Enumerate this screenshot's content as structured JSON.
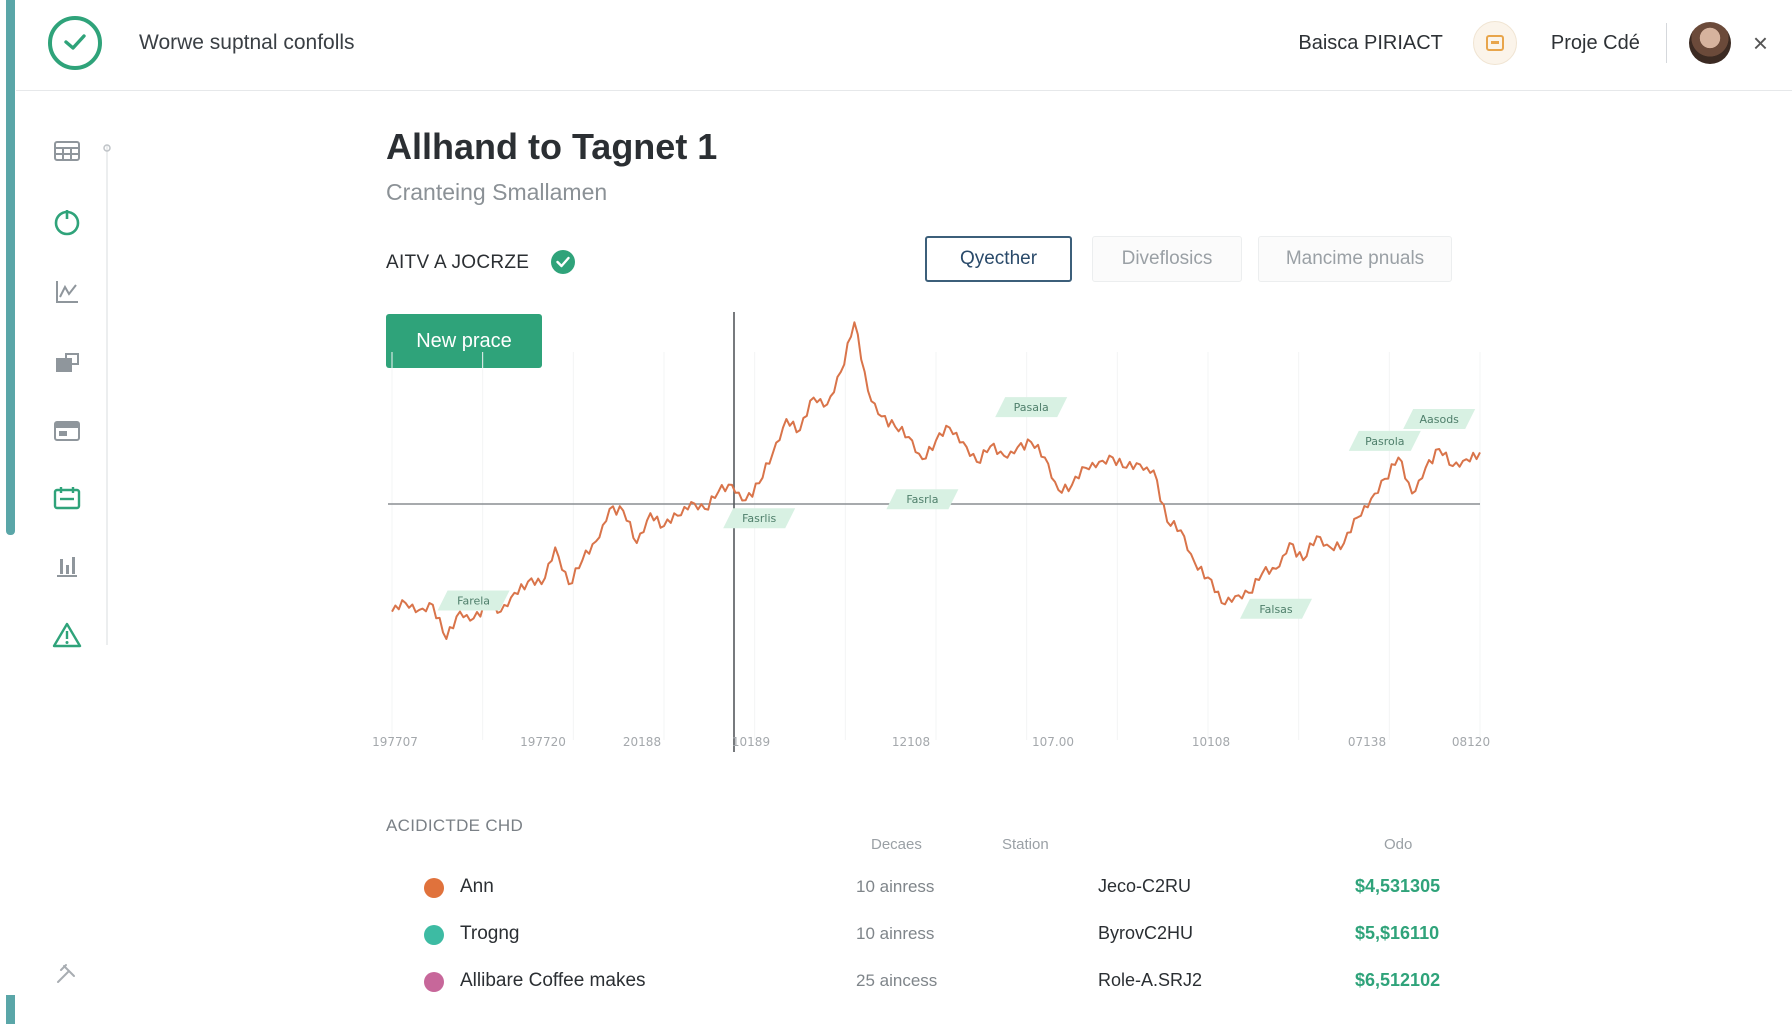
{
  "header": {
    "app_title": "Worwe suptnal confolls",
    "user_label": "Baisca PIRIACT",
    "project_label": "Proje Cdé",
    "close_label": "×"
  },
  "sidebar": {
    "items": [
      {
        "icon": "grid-icon"
      },
      {
        "icon": "power-icon"
      },
      {
        "icon": "chart-icon"
      },
      {
        "icon": "folder-icon"
      },
      {
        "icon": "inbox-icon"
      },
      {
        "icon": "calendar-icon"
      },
      {
        "icon": "bar-chart-icon"
      },
      {
        "icon": "warning-icon"
      }
    ],
    "bottom_icon": "tools-icon"
  },
  "main": {
    "title": "Allhand to Tagnet 1",
    "subtitle": "Cranteing Smallamen",
    "status_label": "AITV A JOCRZE",
    "tabs": [
      {
        "label": "Qyecther",
        "active": true
      },
      {
        "label": "Diveflosics",
        "active": false
      },
      {
        "label": "Mancime pnuals",
        "active": false
      }
    ],
    "new_button": "New prace"
  },
  "chart_data": {
    "type": "line",
    "x_tick_labels": [
      "197707",
      "197720",
      "20188",
      "10189",
      "12108",
      "107.00",
      "10108",
      "07138",
      "08120"
    ],
    "annotations": [
      "Farela",
      "Fasrlis",
      "Pasala",
      "Fasrla",
      "Falsas",
      "Pasrola",
      "Aasods"
    ],
    "series": [
      {
        "color": "#d9744a",
        "values": [
          150,
          160,
          152,
          158,
          118,
          150,
          142,
          158,
          150,
          172,
          185,
          182,
          225,
          182,
          210,
          232,
          270,
          268,
          230,
          265,
          250,
          262,
          278,
          270,
          290,
          298,
          280,
          300,
          335,
          375,
          362,
          400,
          392,
          430,
          488,
          408,
          378,
          366,
          354,
          328,
          350,
          365,
          348,
          325,
          343,
          332,
          342,
          348,
          330,
          292,
          298,
          318,
          325,
          330,
          318,
          322,
          315,
          255,
          245,
          208,
          190,
          160,
          168,
          172,
          195,
          200,
          230,
          210,
          238,
          225,
          230,
          260,
          282,
          305,
          330,
          288,
          318,
          340,
          320,
          328,
          336
        ]
      }
    ],
    "colors": {
      "line": "#d9744a",
      "accent": "#2fa37a",
      "annotation_fill": "#d8f1e3"
    }
  },
  "table": {
    "title": "ACIDICTDE CHD",
    "headers": {
      "decades": "Decaes",
      "station": "Station",
      "odds": "Odo"
    },
    "rows": [
      {
        "name": "Ann",
        "duration": "10 ainress",
        "station": "Jeco-C2RU",
        "amount": "$4,531305",
        "dot_color": "#e0723c"
      },
      {
        "name": "Trogng",
        "duration": "10 ainress",
        "station": "ByrovC2HU",
        "amount": "$5,$16110",
        "dot_color": "#3dbba3"
      },
      {
        "name": "Allibare Coffee makes",
        "duration": "25 aincess",
        "station": "Role-A.SRJ2",
        "amount": "$6,512102",
        "dot_color": "#c7679a"
      }
    ]
  }
}
